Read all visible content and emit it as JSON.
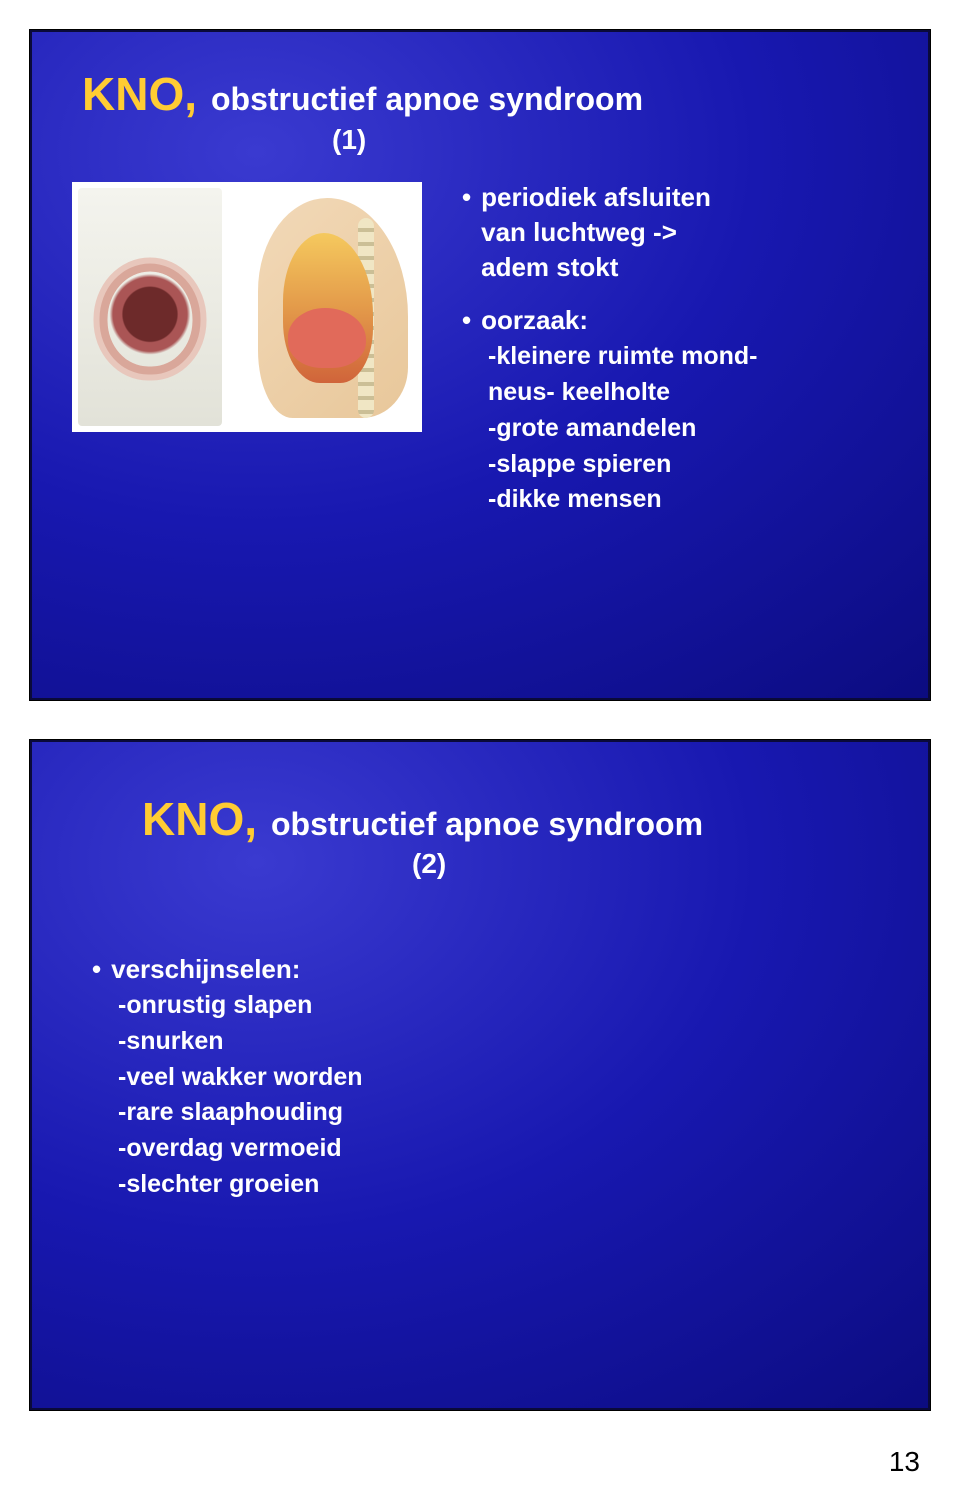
{
  "page_number": "13",
  "slide1": {
    "kno": "KNO,",
    "subtitle": "obstructief apnoe syndroom",
    "paren": "(1)",
    "bullet1_line1": "periodiek afsluiten",
    "bullet1_line2": "van luchtweg  ->",
    "bullet1_line3": "adem stokt",
    "bullet2_head": "oorzaak:",
    "bullet2_items": [
      "-kleinere ruimte mond-",
      " neus- keelholte",
      "-grote amandelen",
      "-slappe spieren",
      "-dikke mensen"
    ]
  },
  "slide2": {
    "kno": "KNO,",
    "subtitle": "obstructief apnoe syndroom",
    "paren": "(2)",
    "bullet_head": "verschijnselen:",
    "items": [
      "-onrustig slapen",
      "-snurken",
      "-veel wakker worden",
      "-rare slaaphouding",
      "-overdag vermoeid",
      "-slechter groeien"
    ]
  },
  "colors": {
    "slide_bg_inner": "#3a3ad0",
    "slide_bg_outer": "#0a0a7a",
    "kno_color": "#ffcc33",
    "text_color": "#ffffff",
    "border": "#0a0a3a"
  }
}
